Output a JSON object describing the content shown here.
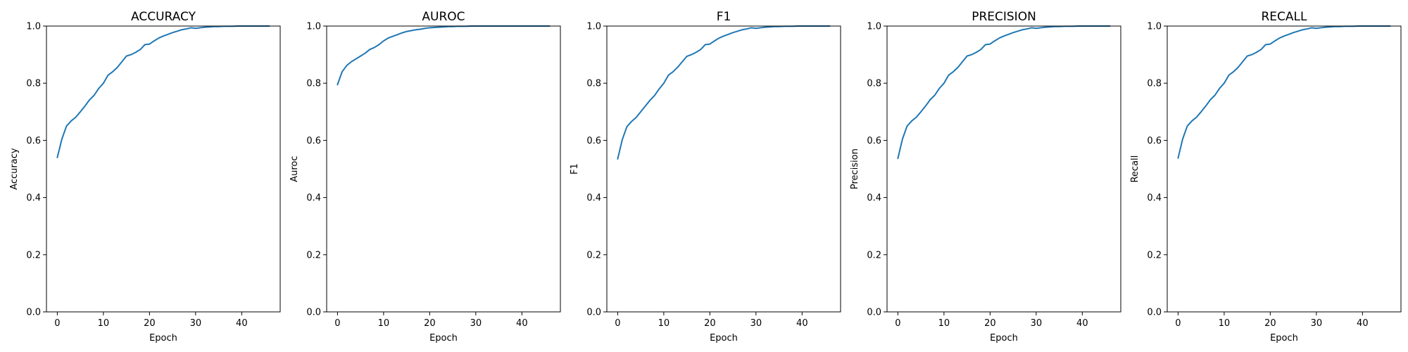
{
  "chart_data": [
    {
      "type": "line",
      "title": "ACCURACY",
      "xlabel": "Epoch",
      "ylabel": "Accuracy",
      "xlim": [
        -2.35,
        48.35
      ],
      "ylim": [
        0,
        1
      ],
      "xticks": [
        0,
        10,
        20,
        30,
        40
      ],
      "yticks": [
        0.0,
        0.2,
        0.4,
        0.6,
        0.8,
        1.0
      ],
      "grid": false,
      "color": "#1f77b4",
      "x": [
        0,
        1,
        2,
        3,
        4,
        5,
        6,
        7,
        8,
        9,
        10,
        11,
        12,
        13,
        14,
        15,
        16,
        17,
        18,
        19,
        20,
        21,
        22,
        23,
        24,
        25,
        26,
        27,
        28,
        29,
        30,
        31,
        32,
        33,
        34,
        35,
        36,
        37,
        38,
        39,
        40,
        41,
        42,
        43,
        44,
        45,
        46
      ],
      "series": [
        {
          "values": [
            0.54,
            0.605,
            0.65,
            0.668,
            0.681,
            0.7,
            0.72,
            0.742,
            0.758,
            0.782,
            0.8,
            0.828,
            0.84,
            0.855,
            0.875,
            0.895,
            0.9,
            0.908,
            0.918,
            0.935,
            0.937,
            0.948,
            0.958,
            0.965,
            0.971,
            0.977,
            0.982,
            0.987,
            0.99,
            0.994,
            0.992,
            0.994,
            0.996,
            0.997,
            0.998,
            0.998,
            0.999,
            0.999,
            0.999,
            1.0,
            1.0,
            1.0,
            1.0,
            1.0,
            1.0,
            1.0,
            1.0
          ]
        }
      ]
    },
    {
      "type": "line",
      "title": "AUROC",
      "xlabel": "Epoch",
      "ylabel": "Auroc",
      "xlim": [
        -2.35,
        48.35
      ],
      "ylim": [
        0,
        1
      ],
      "xticks": [
        0,
        10,
        20,
        30,
        40
      ],
      "yticks": [
        0.0,
        0.2,
        0.4,
        0.6,
        0.8,
        1.0
      ],
      "grid": false,
      "color": "#1f77b4",
      "x": [
        0,
        1,
        2,
        3,
        4,
        5,
        6,
        7,
        8,
        9,
        10,
        11,
        12,
        13,
        14,
        15,
        16,
        17,
        18,
        19,
        20,
        21,
        22,
        23,
        24,
        25,
        26,
        27,
        28,
        29,
        30,
        31,
        32,
        33,
        34,
        35,
        36,
        37,
        38,
        39,
        40,
        41,
        42,
        43,
        44,
        45,
        46
      ],
      "series": [
        {
          "values": [
            0.795,
            0.84,
            0.862,
            0.875,
            0.885,
            0.895,
            0.905,
            0.918,
            0.925,
            0.935,
            0.948,
            0.958,
            0.964,
            0.97,
            0.976,
            0.981,
            0.984,
            0.987,
            0.989,
            0.992,
            0.994,
            0.995,
            0.996,
            0.997,
            0.998,
            0.998,
            0.999,
            0.999,
            0.999,
            1.0,
            1.0,
            1.0,
            1.0,
            1.0,
            1.0,
            1.0,
            1.0,
            1.0,
            1.0,
            1.0,
            1.0,
            1.0,
            1.0,
            1.0,
            1.0,
            1.0,
            1.0
          ]
        }
      ]
    },
    {
      "type": "line",
      "title": "F1",
      "xlabel": "Epoch",
      "ylabel": "F1",
      "xlim": [
        -2.35,
        48.35
      ],
      "ylim": [
        0,
        1
      ],
      "xticks": [
        0,
        10,
        20,
        30,
        40
      ],
      "yticks": [
        0.0,
        0.2,
        0.4,
        0.6,
        0.8,
        1.0
      ],
      "grid": false,
      "color": "#1f77b4",
      "x": [
        0,
        1,
        2,
        3,
        4,
        5,
        6,
        7,
        8,
        9,
        10,
        11,
        12,
        13,
        14,
        15,
        16,
        17,
        18,
        19,
        20,
        21,
        22,
        23,
        24,
        25,
        26,
        27,
        28,
        29,
        30,
        31,
        32,
        33,
        34,
        35,
        36,
        37,
        38,
        39,
        40,
        41,
        42,
        43,
        44,
        45,
        46
      ],
      "series": [
        {
          "values": [
            0.535,
            0.603,
            0.648,
            0.666,
            0.68,
            0.7,
            0.72,
            0.74,
            0.757,
            0.78,
            0.8,
            0.828,
            0.84,
            0.856,
            0.875,
            0.894,
            0.9,
            0.908,
            0.918,
            0.935,
            0.937,
            0.948,
            0.958,
            0.965,
            0.971,
            0.977,
            0.982,
            0.987,
            0.99,
            0.994,
            0.992,
            0.994,
            0.996,
            0.997,
            0.998,
            0.998,
            0.999,
            0.999,
            0.999,
            1.0,
            1.0,
            1.0,
            1.0,
            1.0,
            1.0,
            1.0,
            1.0
          ]
        }
      ]
    },
    {
      "type": "line",
      "title": "PRECISION",
      "xlabel": "Epoch",
      "ylabel": "Precision",
      "xlim": [
        -2.35,
        48.35
      ],
      "ylim": [
        0,
        1
      ],
      "xticks": [
        0,
        10,
        20,
        30,
        40
      ],
      "yticks": [
        0.0,
        0.2,
        0.4,
        0.6,
        0.8,
        1.0
      ],
      "grid": false,
      "color": "#1f77b4",
      "x": [
        0,
        1,
        2,
        3,
        4,
        5,
        6,
        7,
        8,
        9,
        10,
        11,
        12,
        13,
        14,
        15,
        16,
        17,
        18,
        19,
        20,
        21,
        22,
        23,
        24,
        25,
        26,
        27,
        28,
        29,
        30,
        31,
        32,
        33,
        34,
        35,
        36,
        37,
        38,
        39,
        40,
        41,
        42,
        43,
        44,
        45,
        46
      ],
      "series": [
        {
          "values": [
            0.537,
            0.605,
            0.65,
            0.668,
            0.681,
            0.7,
            0.72,
            0.742,
            0.758,
            0.782,
            0.8,
            0.828,
            0.84,
            0.855,
            0.875,
            0.895,
            0.9,
            0.908,
            0.918,
            0.935,
            0.937,
            0.948,
            0.958,
            0.965,
            0.971,
            0.977,
            0.982,
            0.987,
            0.99,
            0.994,
            0.992,
            0.994,
            0.996,
            0.997,
            0.998,
            0.998,
            0.999,
            0.999,
            0.999,
            1.0,
            1.0,
            1.0,
            1.0,
            1.0,
            1.0,
            1.0,
            1.0
          ]
        }
      ]
    },
    {
      "type": "line",
      "title": "RECALL",
      "xlabel": "Epoch",
      "ylabel": "Recall",
      "xlim": [
        -2.35,
        48.35
      ],
      "ylim": [
        0,
        1
      ],
      "xticks": [
        0,
        10,
        20,
        30,
        40
      ],
      "yticks": [
        0.0,
        0.2,
        0.4,
        0.6,
        0.8,
        1.0
      ],
      "grid": false,
      "color": "#1f77b4",
      "x": [
        0,
        1,
        2,
        3,
        4,
        5,
        6,
        7,
        8,
        9,
        10,
        11,
        12,
        13,
        14,
        15,
        16,
        17,
        18,
        19,
        20,
        21,
        22,
        23,
        24,
        25,
        26,
        27,
        28,
        29,
        30,
        31,
        32,
        33,
        34,
        35,
        36,
        37,
        38,
        39,
        40,
        41,
        42,
        43,
        44,
        45,
        46
      ],
      "series": [
        {
          "values": [
            0.538,
            0.605,
            0.65,
            0.668,
            0.681,
            0.7,
            0.72,
            0.742,
            0.758,
            0.782,
            0.8,
            0.828,
            0.84,
            0.855,
            0.875,
            0.895,
            0.9,
            0.908,
            0.918,
            0.935,
            0.937,
            0.948,
            0.958,
            0.965,
            0.971,
            0.977,
            0.982,
            0.987,
            0.99,
            0.994,
            0.992,
            0.994,
            0.996,
            0.997,
            0.998,
            0.998,
            0.999,
            0.999,
            0.999,
            1.0,
            1.0,
            1.0,
            1.0,
            1.0,
            1.0,
            1.0,
            1.0
          ]
        }
      ]
    }
  ]
}
